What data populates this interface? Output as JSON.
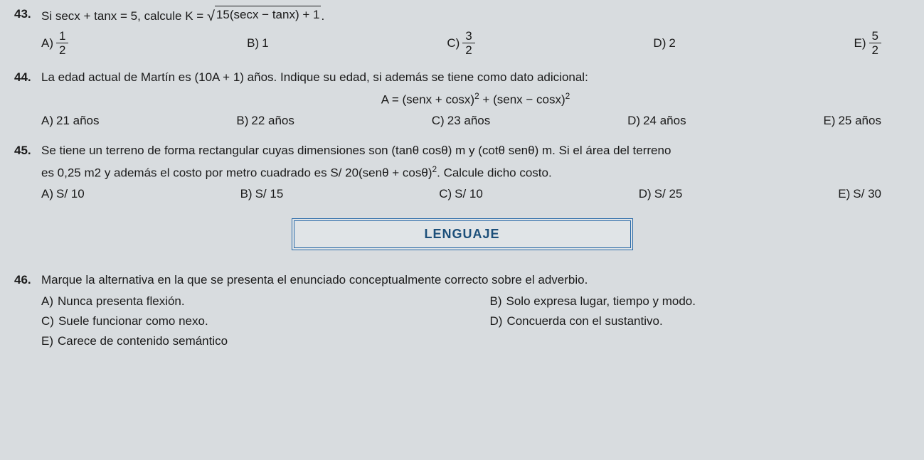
{
  "q43": {
    "number": "43.",
    "stem_prefix": "Si secx + tanx = 5, calcule K = ",
    "radicand": "15(secx − tanx) + 1",
    "stem_suffix": ".",
    "options": {
      "A": {
        "label": "A)",
        "num": "1",
        "den": "2"
      },
      "B": {
        "label": "B)",
        "text": "1"
      },
      "C": {
        "label": "C)",
        "num": "3",
        "den": "2"
      },
      "D": {
        "label": "D)",
        "text": "2"
      },
      "E": {
        "label": "E)",
        "num": "5",
        "den": "2"
      }
    }
  },
  "q44": {
    "number": "44.",
    "stem": "La edad actual de Martín es (10A + 1) años. Indique su edad, si además se tiene como dato adicional:",
    "formula_lhs": "A = (senx + cosx)",
    "formula_mid": " + (senx − cosx)",
    "exp": "2",
    "options": {
      "A": {
        "label": "A)",
        "text": "21 años"
      },
      "B": {
        "label": "B)",
        "text": "22 años"
      },
      "C": {
        "label": "C)",
        "text": "23 años"
      },
      "D": {
        "label": "D)",
        "text": "24 años"
      },
      "E": {
        "label": "E)",
        "text": "25 años"
      }
    }
  },
  "q45": {
    "number": "45.",
    "stem1": "Se tiene un terreno de forma rectangular cuyas dimensiones son (tanθ cosθ) m y (cotθ senθ) m. Si el área del terreno",
    "stem2_prefix": "es 0,25 m2 y además el costo por metro cuadrado es S/ 20(senθ + cosθ)",
    "exp": "2",
    "stem2_suffix": ". Calcule dicho costo.",
    "options": {
      "A": {
        "label": "A)",
        "text": "S/ 10"
      },
      "B": {
        "label": "B)",
        "text": "S/ 15"
      },
      "C": {
        "label": "C)",
        "text": "S/ 10"
      },
      "D": {
        "label": "D)",
        "text": "S/ 25"
      },
      "E": {
        "label": "E)",
        "text": "S/ 30"
      }
    }
  },
  "section": {
    "title": "LENGUAJE"
  },
  "q46": {
    "number": "46.",
    "stem": "Marque la alternativa en la que se presenta el enunciado conceptualmente correcto sobre el adverbio.",
    "options": {
      "A": {
        "label": "A)",
        "text": "Nunca presenta flexión."
      },
      "B": {
        "label": "B)",
        "text": "Solo expresa lugar, tiempo y modo."
      },
      "C": {
        "label": "C)",
        "text": "Suele funcionar como nexo."
      },
      "D": {
        "label": "D)",
        "text": "Concuerda con el sustantivo."
      },
      "E": {
        "label": "E)",
        "text": "Carece de contenido semántico"
      }
    }
  }
}
